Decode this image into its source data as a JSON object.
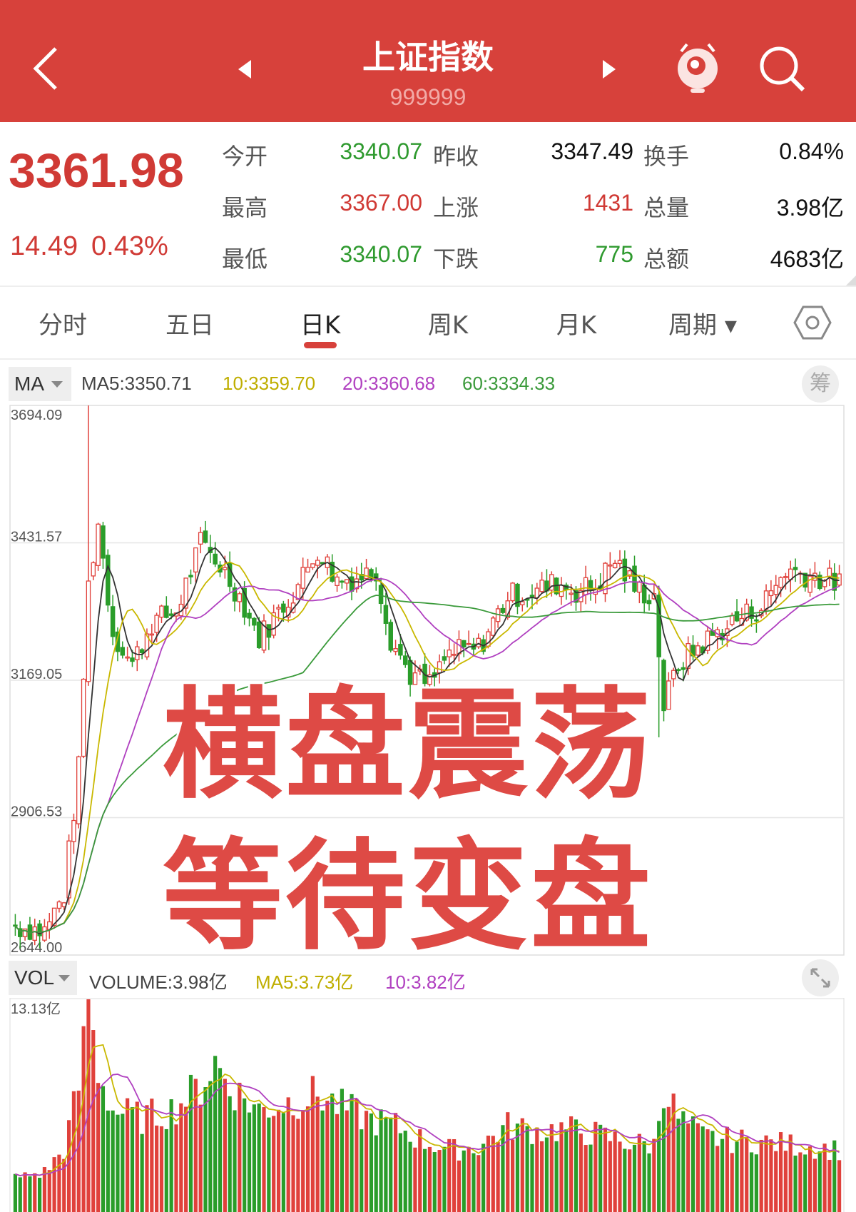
{
  "header": {
    "title": "上证指数",
    "code": "999999",
    "icons": [
      "back-chevron-icon",
      "prev-triangle-icon",
      "next-triangle-icon",
      "mascot-icon",
      "search-icon"
    ],
    "color": "#d7413b"
  },
  "quote": {
    "price": "3361.98",
    "change": "14.49",
    "change_pct": "0.43%",
    "rows": [
      [
        {
          "label": "今开",
          "value": "3340.07",
          "color": "#2f9a2f"
        },
        {
          "label": "昨收",
          "value": "3347.49",
          "color": "#111"
        },
        {
          "label": "换手",
          "value": "0.84%",
          "color": "#111"
        }
      ],
      [
        {
          "label": "最高",
          "value": "3367.00",
          "color": "#d03a35"
        },
        {
          "label": "上涨",
          "value": "1431",
          "color": "#d03a35"
        },
        {
          "label": "总量",
          "value": "3.98亿",
          "color": "#111"
        }
      ],
      [
        {
          "label": "最低",
          "value": "3340.07",
          "color": "#2f9a2f"
        },
        {
          "label": "下跌",
          "value": "775",
          "color": "#2f9a2f"
        },
        {
          "label": "总额",
          "value": "4683亿",
          "color": "#111"
        }
      ]
    ]
  },
  "tabs": [
    {
      "label": "分时"
    },
    {
      "label": "五日"
    },
    {
      "label": "日K",
      "active": true
    },
    {
      "label": "周K"
    },
    {
      "label": "月K"
    },
    {
      "label": "周期 ▾"
    }
  ],
  "ma_legend": {
    "selector": "MA",
    "ma5": "MA5:3350.71",
    "ma10": "10:3359.70",
    "ma20": "20:3360.68",
    "ma60": "60:3334.33",
    "chip_button": "筹"
  },
  "vol_legend": {
    "selector": "VOL",
    "volume": "VOLUME:3.98亿",
    "ma5": "MA5:3.73亿",
    "ma10": "10:3.82亿"
  },
  "overlay": {
    "line1": "横盘震荡",
    "line2": "等待变盘"
  },
  "chart_data": {
    "type": "candlestick",
    "y_labels": [
      "3694.09",
      "3431.57",
      "3169.05",
      "2906.53",
      "2644.00"
    ],
    "ylim": [
      2644.0,
      3694.09
    ],
    "close_path": [
      [
        0,
        2700
      ],
      [
        6,
        2690
      ],
      [
        10,
        2760
      ],
      [
        13,
        3000
      ],
      [
        15,
        3350
      ],
      [
        17,
        3470
      ],
      [
        20,
        3260
      ],
      [
        24,
        3200
      ],
      [
        28,
        3280
      ],
      [
        33,
        3300
      ],
      [
        38,
        3430
      ],
      [
        42,
        3390
      ],
      [
        46,
        3330
      ],
      [
        50,
        3250
      ],
      [
        54,
        3300
      ],
      [
        58,
        3350
      ],
      [
        62,
        3420
      ],
      [
        66,
        3360
      ],
      [
        70,
        3365
      ],
      [
        74,
        3380
      ],
      [
        77,
        3250
      ],
      [
        81,
        3180
      ],
      [
        85,
        3160
      ],
      [
        89,
        3220
      ],
      [
        95,
        3230
      ],
      [
        101,
        3330
      ],
      [
        107,
        3340
      ],
      [
        111,
        3355
      ],
      [
        115,
        3340
      ],
      [
        119,
        3350
      ],
      [
        123,
        3400
      ],
      [
        127,
        3345
      ],
      [
        131,
        3330
      ],
      [
        133,
        3120
      ],
      [
        136,
        3200
      ],
      [
        141,
        3240
      ],
      [
        147,
        3280
      ],
      [
        153,
        3310
      ],
      [
        158,
        3380
      ],
      [
        163,
        3370
      ],
      [
        169,
        3355
      ]
    ],
    "volume_max_label": "13.13亿",
    "volume_max": 13.13,
    "volume_path": [
      [
        0,
        2.2
      ],
      [
        6,
        2.6
      ],
      [
        10,
        4
      ],
      [
        13,
        8
      ],
      [
        15,
        13.1
      ],
      [
        17,
        9
      ],
      [
        20,
        6.5
      ],
      [
        26,
        6
      ],
      [
        32,
        6.5
      ],
      [
        38,
        8
      ],
      [
        41,
        9.5
      ],
      [
        44,
        8
      ],
      [
        50,
        6.5
      ],
      [
        56,
        7
      ],
      [
        62,
        7.5
      ],
      [
        66,
        6.8
      ],
      [
        72,
        6
      ],
      [
        78,
        5.5
      ],
      [
        84,
        4.5
      ],
      [
        90,
        4
      ],
      [
        95,
        4.2
      ],
      [
        101,
        5.5
      ],
      [
        107,
        5.2
      ],
      [
        113,
        5.3
      ],
      [
        119,
        5
      ],
      [
        125,
        4.5
      ],
      [
        131,
        4.3
      ],
      [
        133,
        8
      ],
      [
        136,
        6
      ],
      [
        141,
        4.8
      ],
      [
        147,
        4.6
      ],
      [
        153,
        4.5
      ],
      [
        160,
        4.3
      ],
      [
        169,
        4
      ]
    ],
    "colors": {
      "up": "#e0413b",
      "down": "#2a9d2a",
      "ma5": "#333333",
      "ma10": "#c9b800",
      "ma20": "#b040c0",
      "ma60": "#3a9a3a"
    }
  }
}
